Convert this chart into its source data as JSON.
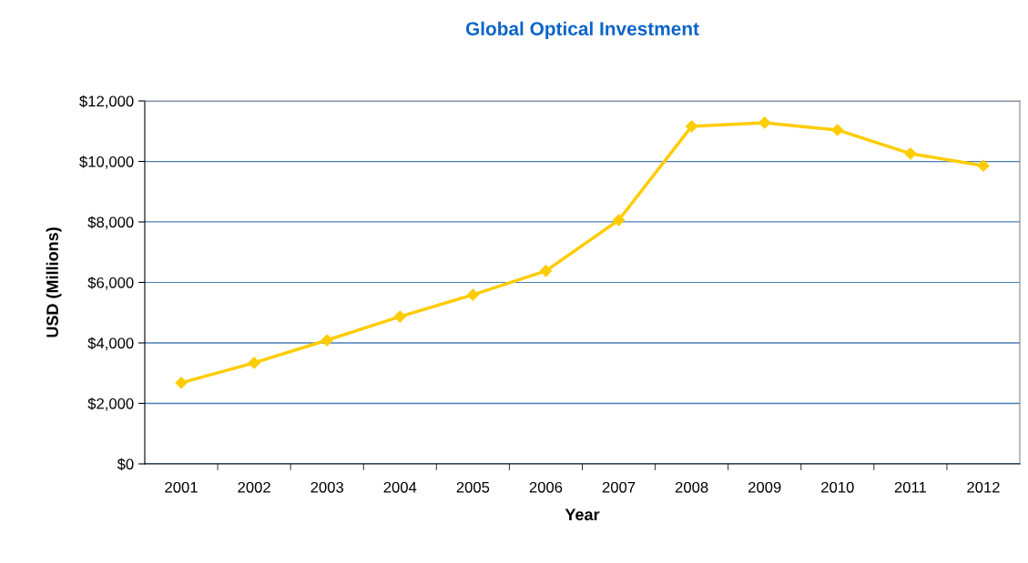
{
  "chart_data": {
    "type": "line",
    "title": "Global Optical Investment",
    "xlabel": "Year",
    "ylabel": "USD (Millions)",
    "categories": [
      "2001",
      "2002",
      "2003",
      "2004",
      "2005",
      "2006",
      "2007",
      "2008",
      "2009",
      "2010",
      "2011",
      "2012"
    ],
    "series": [
      {
        "color": "#ffcc00",
        "values": [
          2680,
          3340,
          4090,
          4870,
          5590,
          6380,
          8060,
          11160,
          11280,
          11040,
          10260,
          9860
        ]
      }
    ],
    "ylim": [
      0,
      12000
    ],
    "yticks": [
      {
        "value": 0,
        "label": "$0"
      },
      {
        "value": 2000,
        "label": "$2,000"
      },
      {
        "value": 4000,
        "label": "$4,000"
      },
      {
        "value": 6000,
        "label": "$6,000"
      },
      {
        "value": 8000,
        "label": "$8,000"
      },
      {
        "value": 10000,
        "label": "$10,000"
      },
      {
        "value": 12000,
        "label": "$12,000"
      }
    ],
    "grid": "y",
    "marker": "diamond",
    "line_style": "solid"
  }
}
